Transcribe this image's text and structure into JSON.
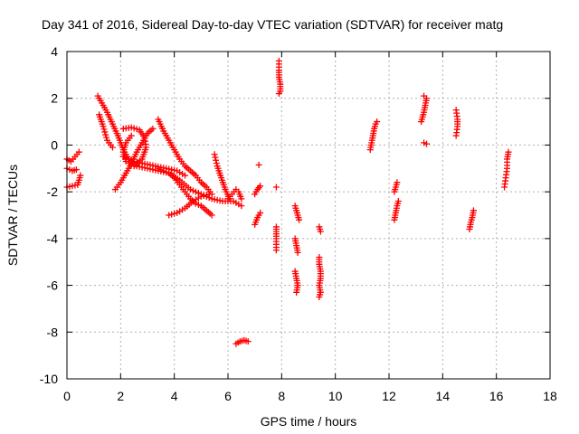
{
  "chart_data": {
    "type": "scatter",
    "title": "Day 341 of 2016, Sidereal Day-to-day VTEC variation (SDTVAR) for receiver matg",
    "xlabel": "GPS time / hours",
    "ylabel": "SDTVAR / TECUs",
    "xlim": [
      0,
      18
    ],
    "ylim": [
      -10,
      4
    ],
    "xticks": [
      "0",
      "2",
      "4",
      "6",
      "8",
      "10",
      "12",
      "14",
      "16",
      "18"
    ],
    "yticks": [
      "-10",
      "-8",
      "-6",
      "-4",
      "-2",
      "0",
      "2",
      "4"
    ],
    "grid": true,
    "marker": "+",
    "color": "#ff0000",
    "tracks": [
      {
        "points": [
          [
            0.0,
            -0.6
          ],
          [
            0.15,
            -0.7
          ],
          [
            0.3,
            -0.5
          ],
          [
            0.45,
            -0.3
          ]
        ]
      },
      {
        "points": [
          [
            0.0,
            -1.0
          ],
          [
            0.2,
            -1.1
          ],
          [
            0.35,
            -1.05
          ]
        ]
      },
      {
        "points": [
          [
            0.0,
            -1.8
          ],
          [
            0.2,
            -1.75
          ],
          [
            0.4,
            -1.7
          ],
          [
            0.5,
            -1.3
          ]
        ]
      },
      {
        "points": [
          [
            1.15,
            2.1
          ],
          [
            1.3,
            1.8
          ],
          [
            1.5,
            1.4
          ],
          [
            1.7,
            0.9
          ],
          [
            1.9,
            0.4
          ],
          [
            2.1,
            -0.2
          ],
          [
            2.3,
            -0.6
          ],
          [
            2.6,
            -0.9
          ],
          [
            3.0,
            -1.0
          ],
          [
            3.4,
            -1.1
          ],
          [
            3.8,
            -1.2
          ],
          [
            4.2,
            -1.5
          ],
          [
            4.6,
            -1.9
          ],
          [
            5.0,
            -2.1
          ],
          [
            5.4,
            -2.3
          ],
          [
            5.8,
            -2.4
          ],
          [
            6.2,
            -2.4
          ],
          [
            6.5,
            -2.6
          ]
        ]
      },
      {
        "points": [
          [
            1.2,
            1.3
          ],
          [
            1.35,
            0.8
          ],
          [
            1.5,
            0.2
          ],
          [
            1.7,
            -0.1
          ]
        ]
      },
      {
        "points": [
          [
            1.8,
            -1.9
          ],
          [
            2.0,
            -1.6
          ],
          [
            2.2,
            -1.2
          ],
          [
            2.4,
            -0.8
          ],
          [
            2.6,
            -0.3
          ],
          [
            2.8,
            0.1
          ],
          [
            3.0,
            0.5
          ],
          [
            3.2,
            0.7
          ]
        ]
      },
      {
        "points": [
          [
            2.1,
            0.7
          ],
          [
            2.4,
            0.75
          ],
          [
            2.7,
            0.65
          ],
          [
            2.9,
            0.3
          ],
          [
            2.95,
            -0.1
          ],
          [
            2.8,
            -0.6
          ],
          [
            2.5,
            -0.9
          ],
          [
            2.2,
            -0.7
          ],
          [
            2.1,
            -0.3
          ],
          [
            2.2,
            0.1
          ],
          [
            2.4,
            0.4
          ]
        ]
      },
      {
        "points": [
          [
            2.1,
            -0.5
          ],
          [
            2.5,
            -0.7
          ],
          [
            2.9,
            -0.8
          ],
          [
            3.3,
            -0.9
          ],
          [
            3.7,
            -1.0
          ],
          [
            4.1,
            -1.1
          ],
          [
            4.4,
            -1.3
          ]
        ]
      },
      {
        "points": [
          [
            3.4,
            1.1
          ],
          [
            3.6,
            0.6
          ],
          [
            3.8,
            0.2
          ],
          [
            4.0,
            -0.2
          ],
          [
            4.2,
            -0.6
          ],
          [
            4.4,
            -0.9
          ],
          [
            4.6,
            -1.1
          ],
          [
            4.8,
            -1.3
          ],
          [
            5.0,
            -1.6
          ],
          [
            5.2,
            -1.8
          ],
          [
            5.4,
            -2.1
          ]
        ]
      },
      {
        "points": [
          [
            3.4,
            -1.0
          ],
          [
            3.6,
            -1.1
          ],
          [
            3.8,
            -1.2
          ],
          [
            4.0,
            -1.4
          ],
          [
            4.2,
            -1.7
          ],
          [
            4.4,
            -2.0
          ],
          [
            4.6,
            -2.3
          ],
          [
            4.8,
            -2.5
          ],
          [
            5.0,
            -2.6
          ],
          [
            5.2,
            -2.8
          ],
          [
            5.4,
            -3.0
          ]
        ]
      },
      {
        "points": [
          [
            3.8,
            -3.0
          ],
          [
            4.1,
            -2.9
          ],
          [
            4.4,
            -2.7
          ],
          [
            4.7,
            -2.4
          ],
          [
            5.0,
            -2.2
          ],
          [
            5.3,
            -2.1
          ]
        ]
      },
      {
        "points": [
          [
            5.5,
            -0.4
          ],
          [
            5.6,
            -0.9
          ],
          [
            5.75,
            -1.4
          ],
          [
            5.9,
            -1.9
          ],
          [
            6.05,
            -2.3
          ]
        ]
      },
      {
        "points": [
          [
            6.0,
            -2.3
          ],
          [
            6.15,
            -2.1
          ],
          [
            6.3,
            -1.9
          ],
          [
            6.4,
            -2.0
          ],
          [
            6.5,
            -2.3
          ]
        ]
      },
      {
        "points": [
          [
            6.3,
            -8.5
          ],
          [
            6.45,
            -8.4
          ],
          [
            6.6,
            -8.35
          ],
          [
            6.75,
            -8.4
          ]
        ]
      },
      {
        "points": [
          [
            7.0,
            -3.4
          ],
          [
            7.1,
            -3.1
          ],
          [
            7.2,
            -2.9
          ]
        ]
      },
      {
        "points": [
          [
            7.0,
            -2.1
          ],
          [
            7.1,
            -1.9
          ],
          [
            7.2,
            -1.75
          ]
        ]
      },
      {
        "points": [
          [
            7.15,
            -0.85
          ]
        ]
      },
      {
        "points": [
          [
            7.9,
            3.6
          ],
          [
            7.9,
            3.2
          ],
          [
            7.9,
            2.9
          ],
          [
            7.95,
            2.6
          ],
          [
            7.95,
            2.3
          ],
          [
            7.9,
            2.2
          ]
        ]
      },
      {
        "points": [
          [
            7.8,
            -1.8
          ]
        ]
      },
      {
        "points": [
          [
            7.8,
            -3.5
          ],
          [
            7.8,
            -3.7
          ],
          [
            7.8,
            -4.0
          ],
          [
            7.8,
            -4.5
          ]
        ]
      },
      {
        "points": [
          [
            8.5,
            -2.6
          ],
          [
            8.55,
            -2.8
          ],
          [
            8.6,
            -3.0
          ],
          [
            8.65,
            -3.2
          ]
        ]
      },
      {
        "points": [
          [
            8.5,
            -4.0
          ],
          [
            8.55,
            -4.3
          ],
          [
            8.6,
            -4.6
          ]
        ]
      },
      {
        "points": [
          [
            8.5,
            -5.4
          ],
          [
            8.55,
            -5.7
          ],
          [
            8.6,
            -6.0
          ],
          [
            8.55,
            -6.3
          ]
        ]
      },
      {
        "points": [
          [
            9.4,
            -3.5
          ],
          [
            9.45,
            -3.7
          ]
        ]
      },
      {
        "points": [
          [
            9.4,
            -4.8
          ],
          [
            9.4,
            -5.1
          ],
          [
            9.45,
            -5.4
          ],
          [
            9.45,
            -5.7
          ],
          [
            9.4,
            -6.0
          ],
          [
            9.45,
            -6.3
          ],
          [
            9.4,
            -6.5
          ]
        ]
      },
      {
        "points": [
          [
            11.3,
            -0.2
          ],
          [
            11.35,
            0.1
          ],
          [
            11.4,
            0.4
          ],
          [
            11.45,
            0.7
          ],
          [
            11.5,
            0.9
          ],
          [
            11.55,
            1.0
          ]
        ]
      },
      {
        "points": [
          [
            12.2,
            -2.0
          ],
          [
            12.25,
            -1.8
          ],
          [
            12.3,
            -1.6
          ]
        ]
      },
      {
        "points": [
          [
            12.2,
            -3.2
          ],
          [
            12.25,
            -2.9
          ],
          [
            12.3,
            -2.6
          ],
          [
            12.35,
            -2.4
          ]
        ]
      },
      {
        "points": [
          [
            13.2,
            1.0
          ],
          [
            13.3,
            1.4
          ],
          [
            13.35,
            1.7
          ],
          [
            13.4,
            2.0
          ],
          [
            13.3,
            2.1
          ]
        ]
      },
      {
        "points": [
          [
            13.3,
            0.1
          ],
          [
            13.4,
            0.05
          ]
        ]
      },
      {
        "points": [
          [
            14.5,
            0.4
          ],
          [
            14.55,
            0.8
          ],
          [
            14.55,
            1.1
          ],
          [
            14.5,
            1.5
          ]
        ]
      },
      {
        "points": [
          [
            15.0,
            -3.6
          ],
          [
            15.05,
            -3.3
          ],
          [
            15.1,
            -3.1
          ],
          [
            15.15,
            -2.8
          ]
        ]
      },
      {
        "points": [
          [
            16.3,
            -1.8
          ],
          [
            16.35,
            -1.4
          ],
          [
            16.4,
            -1.0
          ],
          [
            16.4,
            -0.6
          ],
          [
            16.45,
            -0.3
          ]
        ]
      }
    ]
  }
}
